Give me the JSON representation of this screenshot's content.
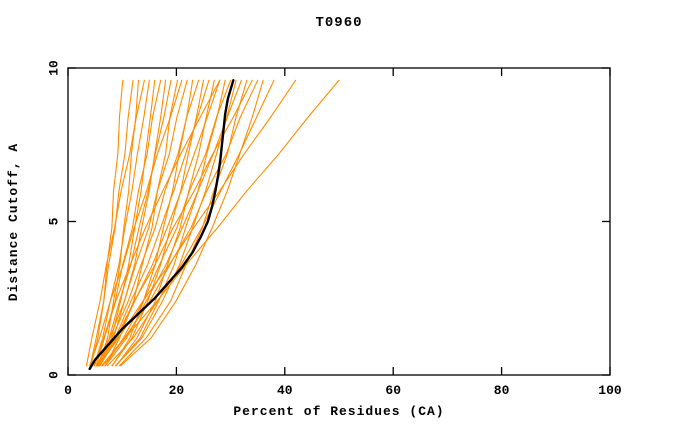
{
  "chart_data": {
    "type": "line",
    "title": "T0960",
    "xlabel": "Percent of Residues (CA)",
    "ylabel": "Distance Cutoff, A",
    "xlim": [
      0,
      100
    ],
    "ylim": [
      0,
      10
    ],
    "xticks": [
      0,
      20,
      40,
      60,
      80,
      100
    ],
    "yticks": [
      0,
      5,
      10
    ],
    "grid": false,
    "legend": "none",
    "colors": {
      "model_lines": "#FF8C00",
      "reference_line": "#000000",
      "frame": "#000000",
      "background": "#ffffff"
    },
    "y_samples": [
      0.3,
      1.2,
      2.4,
      3.6,
      4.8,
      6,
      7.2,
      8.4,
      9.6
    ],
    "orange_series_x": [
      [
        4.2,
        5.5,
        6.6,
        7.2,
        8.1,
        8.4,
        9.2,
        9.5,
        10.1
      ],
      [
        4.1,
        5.2,
        6.6,
        7.5,
        8.7,
        9.4,
        10.5,
        11.1,
        12
      ],
      [
        5.6,
        7.3,
        8.4,
        9.6,
        10.3,
        11.2,
        11.7,
        12.5,
        13
      ],
      [
        3.4,
        4.4,
        5.9,
        7.1,
        8.6,
        9.8,
        11.4,
        12.6,
        14.1
      ],
      [
        4.8,
        6.4,
        7.8,
        9.4,
        10.5,
        11.8,
        12.8,
        14,
        15
      ],
      [
        5.8,
        8,
        9.7,
        11.2,
        12.3,
        13.5,
        14.3,
        15.2,
        16
      ],
      [
        4.9,
        6.6,
        8.7,
        10.1,
        11.9,
        13,
        14.6,
        15.6,
        17.1
      ],
      [
        5.7,
        8.4,
        10.4,
        12.3,
        13.6,
        15,
        16,
        17.1,
        18
      ],
      [
        5.5,
        7.6,
        9.5,
        11.6,
        13.1,
        14.8,
        16.1,
        17.7,
        19
      ],
      [
        6.9,
        9.5,
        12.1,
        13.7,
        15.5,
        16.5,
        18,
        18.8,
        20.2
      ],
      [
        4,
        5.8,
        7.8,
        10.2,
        12.2,
        14.5,
        16.5,
        18.9,
        21
      ],
      [
        5.3,
        7.7,
        10.4,
        12.5,
        14.9,
        16.5,
        18.7,
        20.1,
        22
      ],
      [
        8.2,
        11.4,
        13.9,
        16.1,
        17.6,
        19.3,
        20.5,
        21.9,
        23
      ],
      [
        5.4,
        8.1,
        11.1,
        13.5,
        16.1,
        17.9,
        20.3,
        21.9,
        24.1
      ],
      [
        8.1,
        11.8,
        14.7,
        17.1,
        18.9,
        20.8,
        22.2,
        23.7,
        25
      ],
      [
        5.5,
        8.7,
        11.6,
        14.7,
        17.1,
        19.5,
        21.7,
        23.9,
        26
      ],
      [
        8.9,
        12.7,
        16.1,
        18.4,
        20.7,
        22.3,
        24.1,
        25.5,
        27
      ],
      [
        5.7,
        9.1,
        12.3,
        15.6,
        18.3,
        20.9,
        23.3,
        25.7,
        28
      ],
      [
        8.8,
        13.3,
        16.7,
        19.6,
        21.7,
        24,
        25.6,
        27.5,
        29
      ],
      [
        6.8,
        10.2,
        13.9,
        16.9,
        20.1,
        22.4,
        25.4,
        27.4,
        30
      ],
      [
        8.8,
        13.6,
        17.4,
        20.6,
        23,
        25.4,
        27.4,
        29.3,
        31
      ],
      [
        6.9,
        10.8,
        14.4,
        18.1,
        21.1,
        24,
        26.8,
        29.4,
        32
      ],
      [
        9.5,
        14.4,
        18.9,
        21.8,
        24.8,
        26.9,
        29.4,
        31,
        33
      ],
      [
        5.9,
        8.9,
        12.2,
        16.1,
        19.4,
        23.3,
        26.7,
        30.5,
        34
      ],
      [
        6.2,
        10.4,
        15.1,
        18.8,
        22.7,
        25.6,
        29.2,
        31.8,
        35
      ],
      [
        7.3,
        12,
        16.5,
        20.9,
        24.7,
        28.2,
        31.6,
        34.8,
        38
      ],
      [
        5.7,
        9.3,
        13.8,
        18.7,
        23.2,
        28,
        32.5,
        37.4,
        42
      ],
      [
        6.4,
        10.5,
        16.4,
        21.8,
        27.6,
        33,
        38.9,
        44.3,
        50
      ],
      [
        9.7,
        15.3,
        19.9,
        23.6,
        26.6,
        29.4,
        31.7,
        34,
        36
      ],
      [
        5.2,
        6.7,
        8.8,
        11.5,
        14.3,
        17.5,
        20.8,
        24.4,
        28
      ]
    ],
    "black_series": {
      "y": [
        0.2,
        0.5,
        1,
        1.5,
        2,
        2.5,
        3,
        3.5,
        4,
        4.5,
        5,
        5.5,
        6,
        6.5,
        7,
        7.5,
        8,
        8.5,
        9,
        9.6
      ],
      "x": [
        4,
        5,
        7.5,
        10,
        13,
        16,
        18.5,
        21,
        23,
        24.5,
        25.8,
        26.6,
        27.2,
        27.7,
        28.1,
        28.4,
        28.7,
        29,
        29.5,
        30.5
      ]
    }
  }
}
